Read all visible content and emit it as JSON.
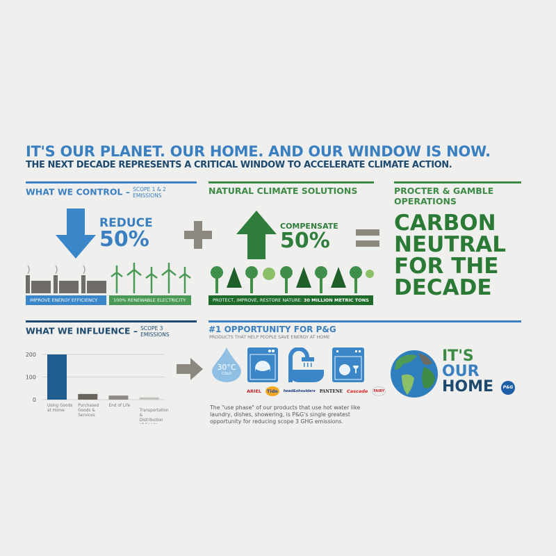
{
  "header": {
    "title": "IT'S OUR PLANET. OUR HOME. AND OUR WINDOW IS NOW.",
    "subtitle": "THE NEXT DECADE REPRESENTS A CRITICAL WINDOW TO ACCELERATE CLIMATE ACTION."
  },
  "control": {
    "title": "WHAT WE CONTROL –",
    "scope": "SCOPE 1 & 2",
    "scope2": "EMISSIONS",
    "action": "REDUCE",
    "percent": "50%",
    "label1": "IMPROVE ENERGY EFFICIENCY",
    "label2": "100% RENEWABLE ELECTRICITY"
  },
  "natural": {
    "title": "NATURAL CLIMATE SOLUTIONS",
    "action": "COMPENSATE",
    "percent": "50%",
    "label_prefix": "PROTECT, IMPROVE, RESTORE NATURE:",
    "label_bold": "30 MILLION METRIC TONS"
  },
  "operations": {
    "title1": "PROCTER & GAMBLE",
    "title2": "OPERATIONS",
    "result": [
      "CARBON",
      "NEUTRAL",
      "FOR THE",
      "DECADE"
    ]
  },
  "influence": {
    "title": "WHAT WE INFLUENCE –",
    "scope": "SCOPE 3",
    "scope2": "EMISSIONS"
  },
  "chart_data": {
    "type": "bar",
    "categories": [
      "Using Goods at Home",
      "Purchased Goods & Services",
      "End of Life",
      "Transportation & Distribution of Goods"
    ],
    "values": [
      200,
      25,
      18,
      10
    ],
    "yticks": [
      "200",
      "100",
      "0"
    ],
    "ylim": [
      0,
      200
    ],
    "grid": true,
    "colors": [
      "#1f5e8e",
      "#6b655d",
      "#8e8a84",
      "#c4c2bf"
    ]
  },
  "opportunity": {
    "title": "#1 OPPORTUNITY FOR P&G",
    "subtitle": "PRODUCTS THAT HELP PEOPLE SAVE ENERGY AT HOME",
    "temp": "30°C",
    "cold": "COLD",
    "brands": [
      "ARIEL",
      "Tide",
      "head&shoulders",
      "PANTENE",
      "Cascade",
      "FAIRY"
    ],
    "paragraph": "The \"use phase\" of our products that use hot water like laundry, dishes, showering, is P&G's single greatest opportunity for reducing scope 3 GHG emissions."
  },
  "logo": {
    "line1": "IT'S",
    "line2": "OUR",
    "line3": "HOME",
    "badge": "P&G"
  },
  "colors": {
    "blue": "#3a7fc0",
    "navy": "#1d4a6e",
    "green": "#3c8a45",
    "darkgreen": "#2a6b33"
  }
}
